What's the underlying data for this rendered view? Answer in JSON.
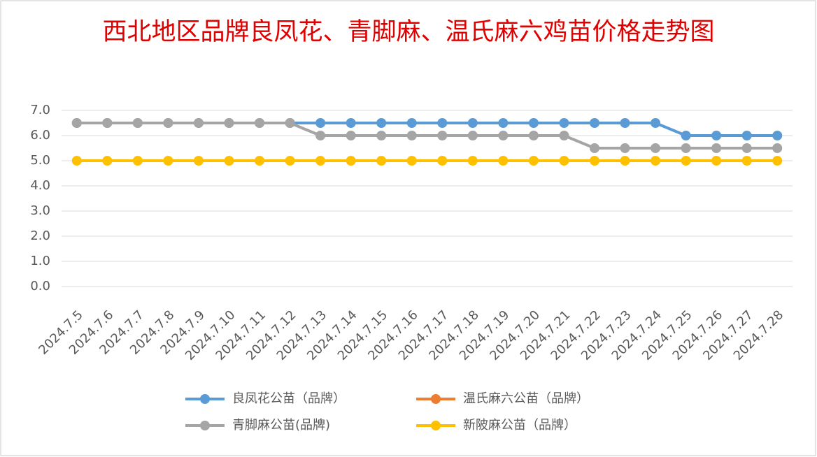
{
  "chart_data": {
    "type": "line",
    "title": "西北地区品牌良凤花、青脚麻、温氏麻六鸡苗价格走势图",
    "categories": [
      "2024.7.5",
      "2024.7.6",
      "2024.7.7",
      "2024.7.8",
      "2024.7.9",
      "2024.7.10",
      "2024.7.11",
      "2024.7.12",
      "2024.7.13",
      "2024.7.14",
      "2024.7.15",
      "2024.7.16",
      "2024.7.17",
      "2024.7.18",
      "2024.7.19",
      "2024.7.20",
      "2024.7.21",
      "2024.7.22",
      "2024.7.23",
      "2024.7.24",
      "2024.7.25",
      "2024.7.26",
      "2024.7.27",
      "2024.7.28"
    ],
    "series": [
      {
        "name": "良凤花公苗（品牌）",
        "color": "#5b9bd5",
        "values": [
          6.5,
          6.5,
          6.5,
          6.5,
          6.5,
          6.5,
          6.5,
          6.5,
          6.5,
          6.5,
          6.5,
          6.5,
          6.5,
          6.5,
          6.5,
          6.5,
          6.5,
          6.5,
          6.5,
          6.5,
          6.0,
          6.0,
          6.0,
          6.0
        ]
      },
      {
        "name": "温氏麻六公苗（品牌）",
        "color": "#ed7d31",
        "values": [
          null,
          null,
          null,
          null,
          null,
          null,
          null,
          null,
          null,
          null,
          null,
          null,
          null,
          null,
          null,
          null,
          null,
          null,
          null,
          null,
          null,
          null,
          null,
          null
        ]
      },
      {
        "name": "青脚麻公苗(品牌)",
        "color": "#a5a5a5",
        "values": [
          6.5,
          6.5,
          6.5,
          6.5,
          6.5,
          6.5,
          6.5,
          6.5,
          6.0,
          6.0,
          6.0,
          6.0,
          6.0,
          6.0,
          6.0,
          6.0,
          6.0,
          5.5,
          5.5,
          5.5,
          5.5,
          5.5,
          5.5,
          5.5
        ]
      },
      {
        "name": "新陂麻公苗（品牌）",
        "color": "#ffc000",
        "values": [
          5.0,
          5.0,
          5.0,
          5.0,
          5.0,
          5.0,
          5.0,
          5.0,
          5.0,
          5.0,
          5.0,
          5.0,
          5.0,
          5.0,
          5.0,
          5.0,
          5.0,
          5.0,
          5.0,
          5.0,
          5.0,
          5.0,
          5.0,
          5.0
        ]
      }
    ],
    "ylim": [
      0,
      7
    ],
    "yticks": [
      {
        "value": 0,
        "label": "0.0"
      },
      {
        "value": 1,
        "label": "1.0"
      },
      {
        "value": 2,
        "label": "2.0"
      },
      {
        "value": 3,
        "label": "3.0"
      },
      {
        "value": 4,
        "label": "4.0"
      },
      {
        "value": 5,
        "label": "5.0"
      },
      {
        "value": 6,
        "label": "6.0"
      },
      {
        "value": 7,
        "label": "7.0"
      }
    ],
    "grid": true,
    "legend": "bottom"
  }
}
